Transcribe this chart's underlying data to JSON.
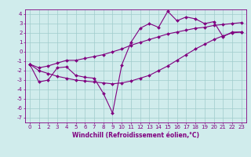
{
  "x_data": [
    0,
    1,
    2,
    3,
    4,
    5,
    6,
    7,
    8,
    9,
    10,
    11,
    12,
    13,
    14,
    15,
    16,
    17,
    18,
    19,
    20,
    21,
    22,
    23
  ],
  "y_jagged": [
    -1.3,
    -3.2,
    -3.0,
    -1.7,
    -1.6,
    -2.5,
    -2.7,
    -2.8,
    -4.4,
    -6.5,
    -1.4,
    1.0,
    2.5,
    3.0,
    2.6,
    4.3,
    3.3,
    3.7,
    3.5,
    3.0,
    3.2,
    1.6,
    2.1,
    2.1
  ],
  "y_upper": [
    -1.3,
    -1.7,
    -1.5,
    -1.2,
    -0.9,
    -0.9,
    -0.7,
    -0.5,
    -0.3,
    0.0,
    0.3,
    0.7,
    1.0,
    1.3,
    1.6,
    1.9,
    2.1,
    2.3,
    2.5,
    2.6,
    2.8,
    2.9,
    3.0,
    3.1
  ],
  "y_lower": [
    -1.3,
    -2.0,
    -2.3,
    -2.6,
    -2.8,
    -3.0,
    -3.1,
    -3.2,
    -3.3,
    -3.4,
    -3.3,
    -3.1,
    -2.8,
    -2.5,
    -2.0,
    -1.5,
    -0.9,
    -0.3,
    0.3,
    0.8,
    1.3,
    1.7,
    2.0,
    2.1
  ],
  "line_color": "#800080",
  "bg_color": "#d0ecec",
  "grid_color": "#a0cccc",
  "xlabel": "Windchill (Refroidissement éolien,°C)",
  "xlim": [
    -0.5,
    23.5
  ],
  "ylim": [
    -7.5,
    4.5
  ],
  "yticks": [
    -7,
    -6,
    -5,
    -4,
    -3,
    -2,
    -1,
    0,
    1,
    2,
    3,
    4
  ],
  "xticks": [
    0,
    1,
    2,
    3,
    4,
    5,
    6,
    7,
    8,
    9,
    10,
    11,
    12,
    13,
    14,
    15,
    16,
    17,
    18,
    19,
    20,
    21,
    22,
    23
  ],
  "marker": "D",
  "markersize": 2.0,
  "linewidth": 0.8,
  "tick_fontsize": 5.0,
  "xlabel_fontsize": 5.5
}
